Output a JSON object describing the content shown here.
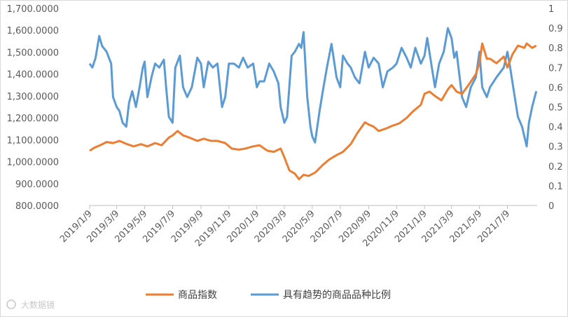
{
  "chart_data": {
    "type": "line",
    "title": "",
    "x": [
      "2019/1/9",
      "2019/3/9",
      "2019/5/9",
      "2019/7/9",
      "2019/9/9",
      "2019/11/9",
      "2020/1/9",
      "2020/3/9",
      "2020/5/9",
      "2020/7/9",
      "2020/9/9",
      "2020/11/9",
      "2021/1/9",
      "2021/3/9",
      "2021/5/9",
      "2021/7/9"
    ],
    "x_tick_labels": [
      "2019/1/9",
      "2019/3/9",
      "2019/5/9",
      "2019/7/9",
      "2019/9/9",
      "2019/11/9",
      "2020/1/9",
      "2020/3/9",
      "2020/5/9",
      "2020/7/9",
      "2020/9/9",
      "2020/11/9",
      "2021/1/9",
      "2021/3/9",
      "2021/5/9",
      "2021/7/9"
    ],
    "y_left_ticks": [
      "800.0000",
      "900.0000",
      "1,000.0000",
      "1,100.0000",
      "1,200.0000",
      "1,300.0000",
      "1,400.0000",
      "1,500.0000",
      "1,600.0000",
      "1,700.0000"
    ],
    "y_left_range": [
      800,
      1700
    ],
    "y_right_ticks": [
      "0",
      "0.1",
      "0.2",
      "0.3",
      "0.4",
      "0.5",
      "0.6",
      "0.7",
      "0.8",
      "0.9",
      "1"
    ],
    "y_right_range": [
      0,
      1
    ],
    "grid": false,
    "legend_position": "bottom",
    "series": [
      {
        "name": "商品指数",
        "axis": "left",
        "color": "#ED7D31",
        "points": [
          [
            "2019/1/9",
            1050
          ],
          [
            "2019/1/20",
            1065
          ],
          [
            "2019/2/1",
            1075
          ],
          [
            "2019/2/15",
            1090
          ],
          [
            "2019/3/1",
            1085
          ],
          [
            "2019/3/15",
            1095
          ],
          [
            "2019/4/1",
            1080
          ],
          [
            "2019/4/15",
            1070
          ],
          [
            "2019/5/1",
            1080
          ],
          [
            "2019/5/15",
            1070
          ],
          [
            "2019/6/1",
            1085
          ],
          [
            "2019/6/15",
            1075
          ],
          [
            "2019/7/1",
            1110
          ],
          [
            "2019/7/9",
            1120
          ],
          [
            "2019/7/20",
            1140
          ],
          [
            "2019/8/1",
            1120
          ],
          [
            "2019/8/15",
            1110
          ],
          [
            "2019/9/1",
            1095
          ],
          [
            "2019/9/15",
            1105
          ],
          [
            "2019/10/1",
            1095
          ],
          [
            "2019/10/15",
            1095
          ],
          [
            "2019/11/1",
            1085
          ],
          [
            "2019/11/15",
            1060
          ],
          [
            "2019/12/1",
            1055
          ],
          [
            "2019/12/15",
            1060
          ],
          [
            "2020/1/1",
            1070
          ],
          [
            "2020/1/15",
            1075
          ],
          [
            "2020/2/1",
            1050
          ],
          [
            "2020/2/15",
            1045
          ],
          [
            "2020/3/1",
            1060
          ],
          [
            "2020/3/9",
            1020
          ],
          [
            "2020/3/20",
            960
          ],
          [
            "2020/4/1",
            945
          ],
          [
            "2020/4/10",
            920
          ],
          [
            "2020/4/20",
            940
          ],
          [
            "2020/5/1",
            935
          ],
          [
            "2020/5/15",
            950
          ],
          [
            "2020/6/1",
            985
          ],
          [
            "2020/6/15",
            1010
          ],
          [
            "2020/7/1",
            1030
          ],
          [
            "2020/7/15",
            1045
          ],
          [
            "2020/8/1",
            1080
          ],
          [
            "2020/8/15",
            1130
          ],
          [
            "2020/9/1",
            1180
          ],
          [
            "2020/9/9",
            1170
          ],
          [
            "2020/9/20",
            1160
          ],
          [
            "2020/10/1",
            1140
          ],
          [
            "2020/10/15",
            1150
          ],
          [
            "2020/11/1",
            1165
          ],
          [
            "2020/11/15",
            1175
          ],
          [
            "2020/12/1",
            1200
          ],
          [
            "2020/12/15",
            1230
          ],
          [
            "2021/1/1",
            1260
          ],
          [
            "2021/1/9",
            1310
          ],
          [
            "2021/1/20",
            1320
          ],
          [
            "2021/2/1",
            1300
          ],
          [
            "2021/2/15",
            1280
          ],
          [
            "2021/3/1",
            1330
          ],
          [
            "2021/3/9",
            1350
          ],
          [
            "2021/3/20",
            1320
          ],
          [
            "2021/4/1",
            1310
          ],
          [
            "2021/4/15",
            1350
          ],
          [
            "2021/5/1",
            1400
          ],
          [
            "2021/5/9",
            1450
          ],
          [
            "2021/5/15",
            1540
          ],
          [
            "2021/5/25",
            1470
          ],
          [
            "2021/6/1",
            1470
          ],
          [
            "2021/6/15",
            1450
          ],
          [
            "2021/7/1",
            1480
          ],
          [
            "2021/7/9",
            1430
          ],
          [
            "2021/7/20",
            1490
          ],
          [
            "2021/8/1",
            1530
          ],
          [
            "2021/8/15",
            1520
          ],
          [
            "2021/8/20",
            1540
          ],
          [
            "2021/9/1",
            1520
          ],
          [
            "2021/9/10",
            1530
          ]
        ]
      },
      {
        "name": "具有趋势的商品品种比例",
        "axis": "right",
        "color": "#5B9BD5",
        "points": [
          [
            "2019/1/9",
            0.72
          ],
          [
            "2019/1/15",
            0.7
          ],
          [
            "2019/1/22",
            0.75
          ],
          [
            "2019/1/30",
            0.86
          ],
          [
            "2019/2/5",
            0.81
          ],
          [
            "2019/2/15",
            0.78
          ],
          [
            "2019/2/25",
            0.72
          ],
          [
            "2019/3/1",
            0.55
          ],
          [
            "2019/3/9",
            0.5
          ],
          [
            "2019/3/15",
            0.48
          ],
          [
            "2019/3/22",
            0.42
          ],
          [
            "2019/3/30",
            0.4
          ],
          [
            "2019/4/5",
            0.52
          ],
          [
            "2019/4/12",
            0.58
          ],
          [
            "2019/4/20",
            0.5
          ],
          [
            "2019/4/28",
            0.6
          ],
          [
            "2019/5/5",
            0.7
          ],
          [
            "2019/5/9",
            0.73
          ],
          [
            "2019/5/15",
            0.55
          ],
          [
            "2019/5/25",
            0.66
          ],
          [
            "2019/6/1",
            0.72
          ],
          [
            "2019/6/10",
            0.7
          ],
          [
            "2019/6/20",
            0.74
          ],
          [
            "2019/6/25",
            0.6
          ],
          [
            "2019/7/1",
            0.45
          ],
          [
            "2019/7/9",
            0.42
          ],
          [
            "2019/7/15",
            0.7
          ],
          [
            "2019/7/25",
            0.76
          ],
          [
            "2019/8/1",
            0.6
          ],
          [
            "2019/8/10",
            0.55
          ],
          [
            "2019/8/20",
            0.6
          ],
          [
            "2019/9/1",
            0.75
          ],
          [
            "2019/9/9",
            0.72
          ],
          [
            "2019/9/15",
            0.6
          ],
          [
            "2019/9/25",
            0.73
          ],
          [
            "2019/10/5",
            0.7
          ],
          [
            "2019/10/15",
            0.72
          ],
          [
            "2019/10/25",
            0.5
          ],
          [
            "2019/11/1",
            0.55
          ],
          [
            "2019/11/9",
            0.72
          ],
          [
            "2019/11/20",
            0.72
          ],
          [
            "2019/12/1",
            0.7
          ],
          [
            "2019/12/10",
            0.75
          ],
          [
            "2019/12/20",
            0.7
          ],
          [
            "2020/1/1",
            0.72
          ],
          [
            "2020/1/9",
            0.6
          ],
          [
            "2020/1/15",
            0.63
          ],
          [
            "2020/1/25",
            0.63
          ],
          [
            "2020/2/5",
            0.72
          ],
          [
            "2020/2/15",
            0.68
          ],
          [
            "2020/2/25",
            0.62
          ],
          [
            "2020/3/1",
            0.5
          ],
          [
            "2020/3/9",
            0.42
          ],
          [
            "2020/3/15",
            0.45
          ],
          [
            "2020/3/25",
            0.76
          ],
          [
            "2020/4/1",
            0.78
          ],
          [
            "2020/4/10",
            0.82
          ],
          [
            "2020/4/15",
            0.8
          ],
          [
            "2020/4/20",
            0.88
          ],
          [
            "2020/4/28",
            0.55
          ],
          [
            "2020/5/5",
            0.4
          ],
          [
            "2020/5/9",
            0.35
          ],
          [
            "2020/5/15",
            0.32
          ],
          [
            "2020/5/25",
            0.48
          ],
          [
            "2020/6/1",
            0.58
          ],
          [
            "2020/6/10",
            0.7
          ],
          [
            "2020/6/20",
            0.82
          ],
          [
            "2020/7/1",
            0.65
          ],
          [
            "2020/7/9",
            0.6
          ],
          [
            "2020/7/15",
            0.76
          ],
          [
            "2020/7/25",
            0.72
          ],
          [
            "2020/8/1",
            0.7
          ],
          [
            "2020/8/10",
            0.65
          ],
          [
            "2020/8/20",
            0.62
          ],
          [
            "2020/9/1",
            0.78
          ],
          [
            "2020/9/9",
            0.7
          ],
          [
            "2020/9/20",
            0.75
          ],
          [
            "2020/10/1",
            0.72
          ],
          [
            "2020/10/10",
            0.6
          ],
          [
            "2020/10/20",
            0.68
          ],
          [
            "2020/11/1",
            0.7
          ],
          [
            "2020/11/9",
            0.72
          ],
          [
            "2020/11/20",
            0.8
          ],
          [
            "2020/12/1",
            0.75
          ],
          [
            "2020/12/10",
            0.7
          ],
          [
            "2020/12/20",
            0.8
          ],
          [
            "2021/1/1",
            0.72
          ],
          [
            "2021/1/9",
            0.76
          ],
          [
            "2021/1/15",
            0.85
          ],
          [
            "2021/1/25",
            0.7
          ],
          [
            "2021/2/1",
            0.6
          ],
          [
            "2021/2/10",
            0.72
          ],
          [
            "2021/2/20",
            0.78
          ],
          [
            "2021/3/1",
            0.9
          ],
          [
            "2021/3/9",
            0.85
          ],
          [
            "2021/3/15",
            0.75
          ],
          [
            "2021/3/20",
            0.78
          ],
          [
            "2021/4/1",
            0.55
          ],
          [
            "2021/4/10",
            0.5
          ],
          [
            "2021/4/20",
            0.6
          ],
          [
            "2021/5/1",
            0.65
          ],
          [
            "2021/5/9",
            0.78
          ],
          [
            "2021/5/15",
            0.6
          ],
          [
            "2021/5/25",
            0.55
          ],
          [
            "2021/6/1",
            0.6
          ],
          [
            "2021/6/15",
            0.65
          ],
          [
            "2021/7/1",
            0.7
          ],
          [
            "2021/7/9",
            0.78
          ],
          [
            "2021/7/15",
            0.7
          ],
          [
            "2021/7/25",
            0.55
          ],
          [
            "2021/8/1",
            0.45
          ],
          [
            "2021/8/10",
            0.4
          ],
          [
            "2021/8/20",
            0.3
          ],
          [
            "2021/8/25",
            0.42
          ],
          [
            "2021/9/1",
            0.5
          ],
          [
            "2021/9/10",
            0.58
          ]
        ]
      }
    ]
  },
  "watermark": "大数据镜"
}
